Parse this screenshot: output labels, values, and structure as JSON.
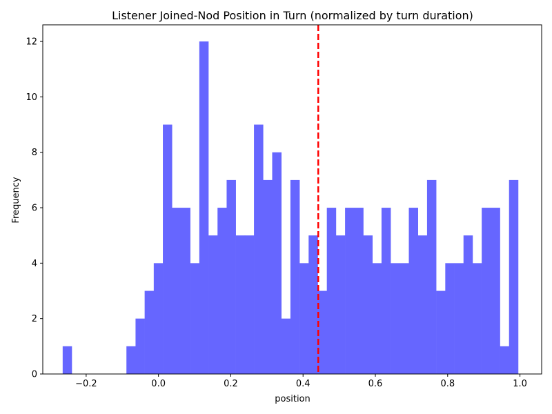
{
  "chart_data": {
    "type": "bar",
    "subtype": "histogram",
    "title": "Listener Joined-Nod Position in Turn (normalized by turn duration)",
    "xlabel": "position",
    "ylabel": "Frequency",
    "xlim": [
      -0.32,
      1.06
    ],
    "ylim": [
      0,
      12.6
    ],
    "xticks": [
      -0.2,
      0.0,
      0.2,
      0.4,
      0.6,
      0.8,
      1.0
    ],
    "xtick_labels": [
      "−0.2",
      "0.0",
      "0.2",
      "0.4",
      "0.6",
      "0.8",
      "1.0"
    ],
    "yticks": [
      0,
      2,
      4,
      6,
      8,
      10,
      12
    ],
    "ytick_labels": [
      "0",
      "2",
      "4",
      "6",
      "8",
      "10",
      "12"
    ],
    "bin_start": -0.265,
    "bin_width": 0.0252,
    "counts": [
      1,
      0,
      0,
      0,
      0,
      0,
      0,
      1,
      2,
      3,
      4,
      9,
      6,
      6,
      4,
      12,
      5,
      6,
      7,
      5,
      5,
      9,
      7,
      8,
      2,
      7,
      4,
      5,
      3,
      6,
      5,
      6,
      6,
      5,
      4,
      6,
      4,
      4,
      6,
      5,
      7,
      3,
      4,
      4,
      5,
      4,
      6,
      6,
      1,
      7
    ],
    "bar_color": "#6666ff",
    "mean_line": {
      "x": 0.442,
      "color": "#ff0000",
      "style": "dashed"
    },
    "grid": false,
    "legend": "none"
  }
}
